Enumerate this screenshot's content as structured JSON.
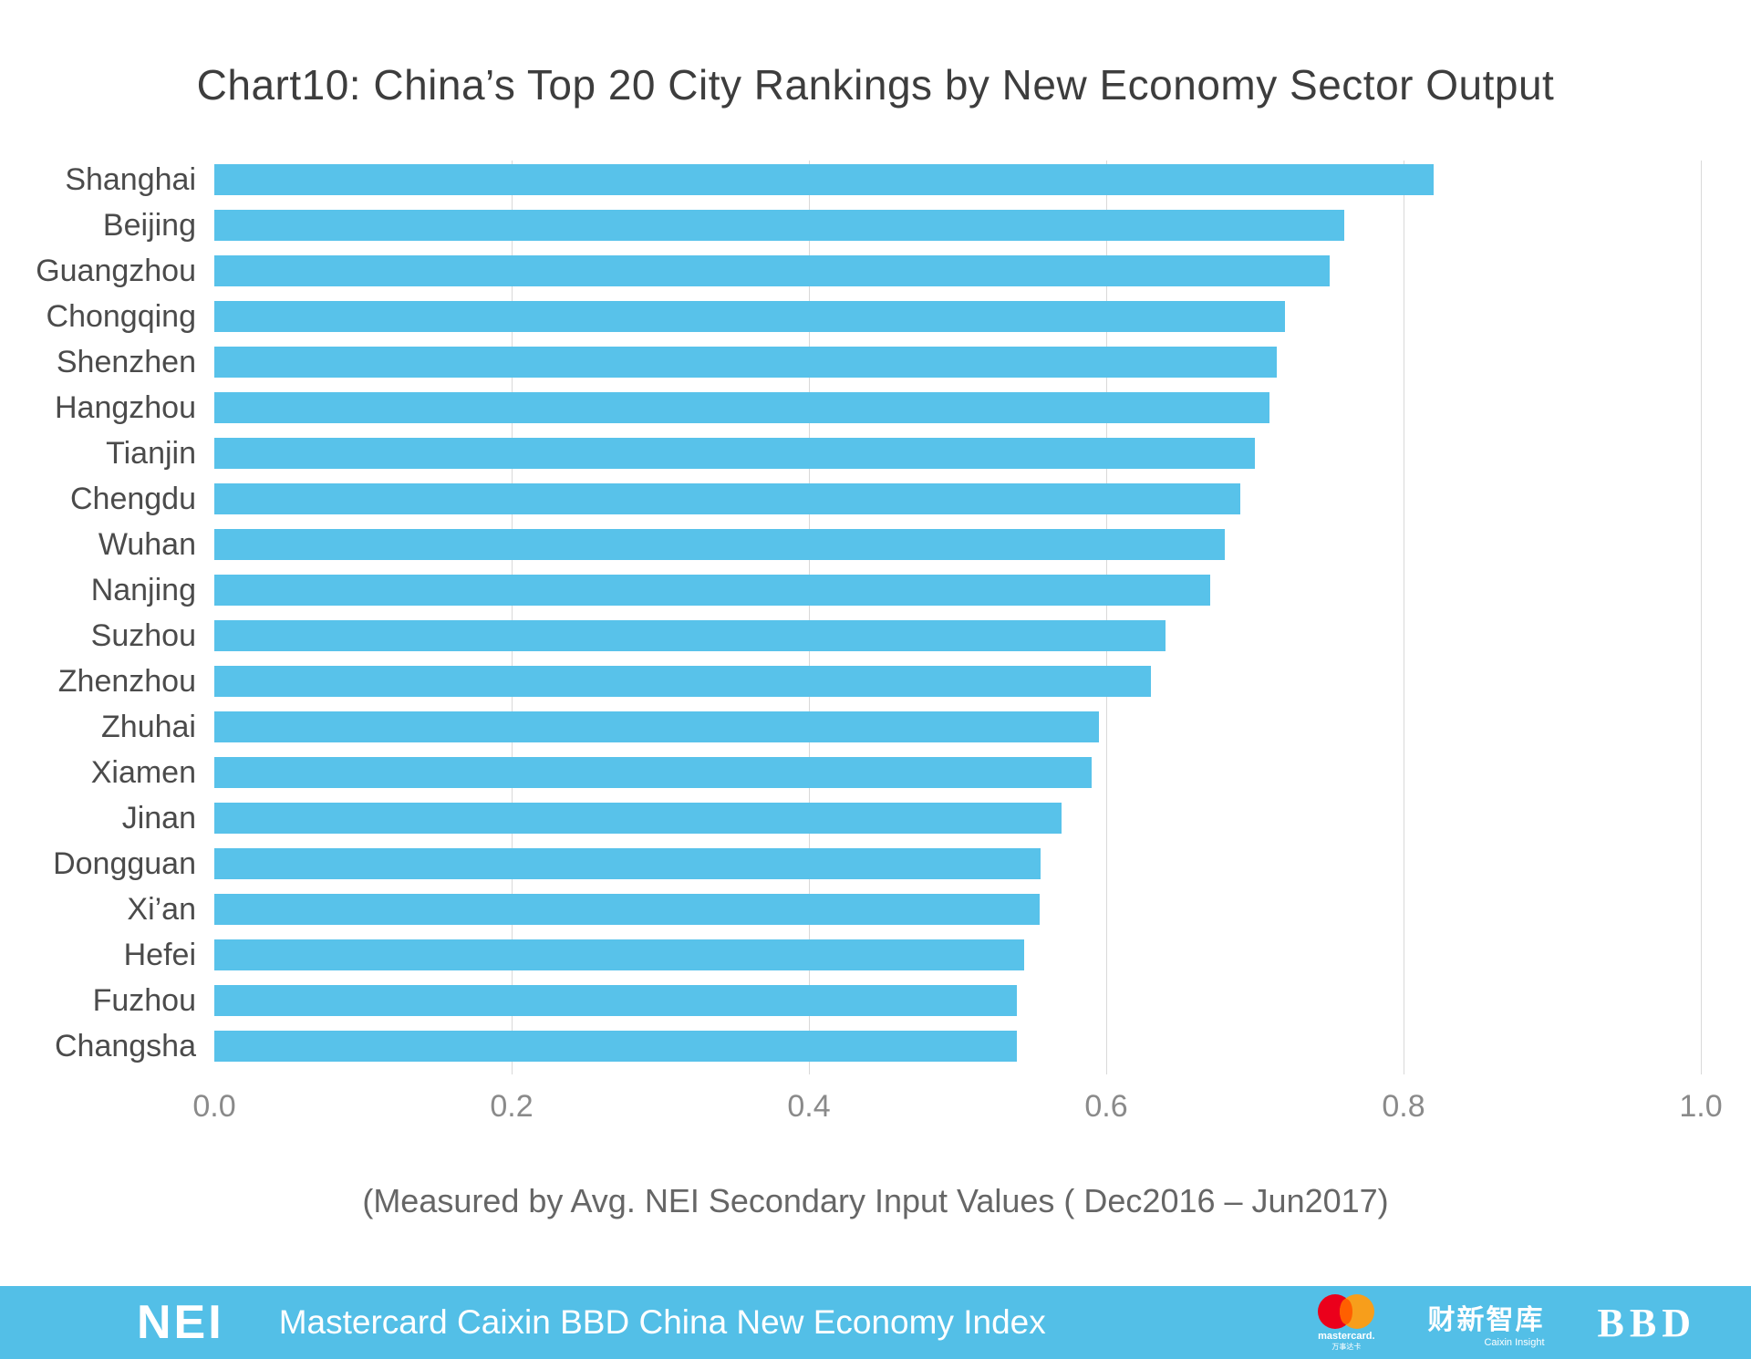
{
  "title": "Chart10: China’s Top 20 City Rankings by New Economy Sector Output",
  "subtitle": "(Measured by Avg. NEI Secondary Input Values ( Dec2016 – Jun2017)",
  "chart_data": {
    "type": "bar",
    "orientation": "horizontal",
    "title": "Chart10: China’s Top 20 City Rankings by New Economy Sector Output",
    "xlabel": "(Measured by Avg. NEI Secondary Input Values ( Dec2016 – Jun2017)",
    "categories": [
      "Shanghai",
      "Beijing",
      "Guangzhou",
      "Chongqing",
      "Shenzhen",
      "Hangzhou",
      "Tianjin",
      "Chengdu",
      "Wuhan",
      "Nanjing",
      "Suzhou",
      "Zhenzhou",
      "Zhuhai",
      "Xiamen",
      "Jinan",
      "Dongguan",
      "Xi’an",
      "Hefei",
      "Fuzhou",
      "Changsha"
    ],
    "values": [
      0.82,
      0.76,
      0.75,
      0.72,
      0.715,
      0.71,
      0.7,
      0.69,
      0.68,
      0.67,
      0.64,
      0.63,
      0.595,
      0.59,
      0.57,
      0.556,
      0.555,
      0.545,
      0.54,
      0.54
    ],
    "xlim": [
      0,
      1.0
    ],
    "xticks": [
      0,
      0.2,
      0.4,
      0.6,
      0.8,
      1.0
    ],
    "grid": true,
    "legend": false,
    "bar_color": "#58C2EA"
  },
  "footer": {
    "background": "#53BFE7",
    "nei_logo": "NEI",
    "text": "Mastercard Caixin BBD China New Economy Index",
    "mastercard_label": "mastercard.",
    "mastercard_sub": "万事达卡",
    "caixin_label": "财新智库",
    "caixin_sub": "Caixin Insight",
    "bbd_label": "BBD",
    "mastercard_red": "#EB001B",
    "mastercard_orange": "#F79E1B"
  }
}
